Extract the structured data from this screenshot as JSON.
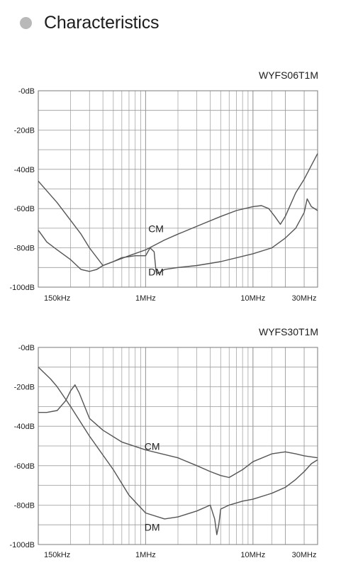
{
  "header": {
    "title": "Characteristics"
  },
  "colors": {
    "bullet": "#b9b9b9",
    "grid": "#9a9a9a",
    "curve_cm": "#555555",
    "curve_dm": "#555555"
  },
  "chart_data": [
    {
      "type": "line",
      "title": "WYFS06T1M",
      "x_scale": "log",
      "xlim": [
        100000,
        40000000
      ],
      "ylim": [
        -100,
        0
      ],
      "x_ticks": [
        {
          "value": 150000,
          "label": "150kHz"
        },
        {
          "value": 1000000,
          "label": "1MHz"
        },
        {
          "value": 10000000,
          "label": "10MHz"
        },
        {
          "value": 30000000,
          "label": "30MHz"
        }
      ],
      "y_ticks": [
        {
          "value": 0,
          "label": "-0dB"
        },
        {
          "value": -20,
          "label": "-20dB"
        },
        {
          "value": -40,
          "label": "-40dB"
        },
        {
          "value": -60,
          "label": "-60dB"
        },
        {
          "value": -80,
          "label": "-80dB"
        },
        {
          "value": -100,
          "label": "-100dB"
        }
      ],
      "grid": true,
      "series": [
        {
          "name": "CM",
          "label_at": [
            1250000,
            -72
          ],
          "x": [
            100000,
            150000,
            200000,
            250000,
            300000,
            400000,
            500000,
            700000,
            1000000,
            1500000,
            2000000,
            3000000,
            5000000,
            7000000,
            10000000,
            12000000,
            14000000,
            16000000,
            18000000,
            20000000,
            25000000,
            30000000,
            35000000,
            40000000
          ],
          "y": [
            -46,
            -57,
            -66,
            -73,
            -80,
            -89,
            -87,
            -84,
            -81,
            -76,
            -73,
            -69,
            -64,
            -61,
            -59,
            -58.5,
            -60,
            -64,
            -68,
            -64,
            -52,
            -45,
            -38,
            -32
          ]
        },
        {
          "name": "DM",
          "label_at": [
            1250000,
            -94
          ],
          "x": [
            100000,
            120000,
            150000,
            200000,
            250000,
            300000,
            350000,
            400000,
            500000,
            600000,
            800000,
            1000000,
            1100000,
            1200000,
            1250000,
            1300000,
            1500000,
            2000000,
            3000000,
            5000000,
            10000000,
            15000000,
            20000000,
            25000000,
            30000000,
            32000000,
            35000000,
            40000000
          ],
          "y": [
            -71,
            -77,
            -81,
            -86,
            -91,
            -92,
            -91,
            -89,
            -87,
            -85,
            -84,
            -84,
            -80,
            -82,
            -92,
            -93,
            -91,
            -90,
            -89,
            -87,
            -83,
            -80,
            -75,
            -70,
            -62,
            -55,
            -59,
            -61
          ]
        }
      ]
    },
    {
      "type": "line",
      "title": "WYFS30T1M",
      "x_scale": "log",
      "xlim": [
        100000,
        40000000
      ],
      "ylim": [
        -100,
        0
      ],
      "x_ticks": [
        {
          "value": 150000,
          "label": "150kHz"
        },
        {
          "value": 1000000,
          "label": "1MHz"
        },
        {
          "value": 10000000,
          "label": "10MHz"
        },
        {
          "value": 30000000,
          "label": "30MHz"
        }
      ],
      "y_ticks": [
        {
          "value": 0,
          "label": "-0dB"
        },
        {
          "value": -20,
          "label": "-20dB"
        },
        {
          "value": -40,
          "label": "-40dB"
        },
        {
          "value": -60,
          "label": "-60dB"
        },
        {
          "value": -80,
          "label": "-80dB"
        },
        {
          "value": -100,
          "label": "-100dB"
        }
      ],
      "grid": true,
      "series": [
        {
          "name": "CM",
          "label_at": [
            1150000,
            -52
          ],
          "x": [
            100000,
            120000,
            150000,
            180000,
            200000,
            220000,
            240000,
            300000,
            400000,
            600000,
            1000000,
            2000000,
            3000000,
            4000000,
            5000000,
            6000000,
            8000000,
            10000000,
            15000000,
            20000000,
            25000000,
            30000000,
            40000000
          ],
          "y": [
            -33,
            -33,
            -32,
            -27,
            -22,
            -19,
            -23,
            -36,
            -42,
            -48,
            -52,
            -56,
            -60,
            -63,
            -65,
            -66,
            -62,
            -58,
            -54,
            -53,
            -54,
            -55,
            -56
          ]
        },
        {
          "name": "DM",
          "label_at": [
            1150000,
            -93
          ],
          "x": [
            100000,
            130000,
            150000,
            200000,
            300000,
            500000,
            700000,
            1000000,
            1500000,
            2000000,
            3000000,
            4000000,
            4400000,
            4600000,
            4800000,
            5000000,
            6000000,
            8000000,
            10000000,
            15000000,
            20000000,
            25000000,
            30000000,
            35000000,
            40000000
          ],
          "y": [
            -10,
            -16,
            -20,
            -30,
            -45,
            -62,
            -75,
            -84,
            -87,
            -86,
            -83,
            -80,
            -87,
            -95,
            -90,
            -82,
            -80,
            -78,
            -77,
            -74,
            -71,
            -67,
            -63,
            -59,
            -57
          ]
        }
      ]
    }
  ]
}
